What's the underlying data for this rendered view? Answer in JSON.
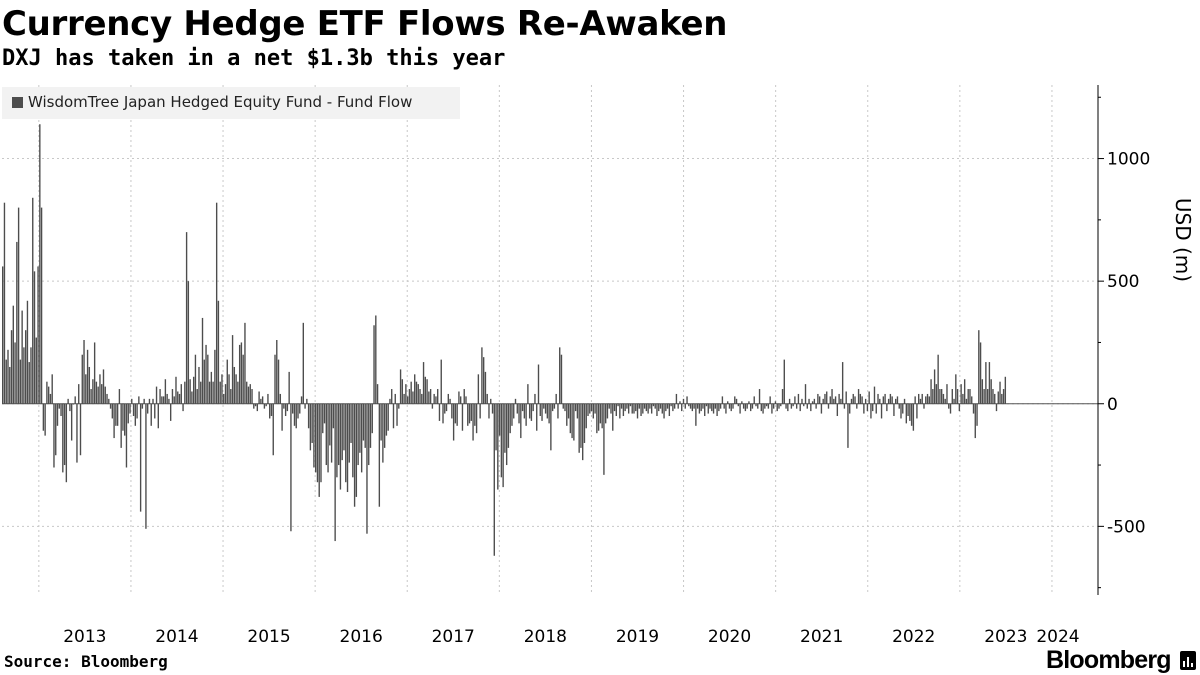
{
  "header": {
    "title": "Currency Hedge ETF Flows Re-Awaken",
    "subtitle": "DXJ has taken in a net $1.3b this year"
  },
  "footer": {
    "source": "Source: Bloomberg",
    "logo_text": "Bloomberg"
  },
  "colors": {
    "bar": "#4d4d4d",
    "grid": "#c8c8c8",
    "axis": "#000000",
    "legend_bg": "#f2f2f2"
  },
  "chart_data": {
    "type": "bar",
    "title": "Currency Hedge ETF Flows Re-Awaken",
    "subtitle": "DXJ has taken in a net $1.3b this year",
    "ylabel": "USD (m)",
    "ylim": [
      -780,
      1300
    ],
    "yticks": [
      1000,
      500,
      0,
      -500
    ],
    "ytick_labels": [
      "1000",
      "500",
      "0",
      "-500"
    ],
    "xlim": [
      2012.6,
      2024.5
    ],
    "xticks": [
      2013,
      2014,
      2015,
      2016,
      2017,
      2018,
      2019,
      2020,
      2021,
      2022,
      2023,
      2024
    ],
    "xtick_labels": [
      "2013",
      "2014",
      "2015",
      "2016",
      "2017",
      "2018",
      "2019",
      "2020",
      "2021",
      "2022",
      "2023",
      "2024"
    ],
    "grid": true,
    "legend_position": "top-left",
    "series": [
      {
        "name": "WisdomTree Japan Hedged Equity Fund - Fund Flow",
        "x_start": 2012.6,
        "x_step_years": 0.0192,
        "values": [
          560,
          820,
          180,
          220,
          150,
          300,
          400,
          250,
          660,
          800,
          180,
          380,
          230,
          300,
          420,
          170,
          230,
          840,
          540,
          270,
          560,
          1140,
          800,
          -110,
          -130,
          90,
          70,
          40,
          120,
          -260,
          -210,
          -90,
          -20,
          -50,
          -280,
          -250,
          -320,
          20,
          -30,
          -150,
          0,
          30,
          -240,
          80,
          -210,
          200,
          260,
          120,
          220,
          150,
          60,
          100,
          250,
          90,
          70,
          120,
          80,
          140,
          70,
          40,
          20,
          -20,
          -60,
          -140,
          -90,
          -90,
          60,
          -180,
          -110,
          -130,
          -260,
          -80,
          -40,
          20,
          -50,
          -90,
          -60,
          30,
          -440,
          -20,
          20,
          -510,
          -40,
          20,
          -90,
          20,
          -60,
          70,
          -100,
          60,
          30,
          30,
          100,
          40,
          20,
          -70,
          60,
          30,
          110,
          50,
          40,
          80,
          -30,
          90,
          700,
          500,
          100,
          50,
          110,
          200,
          60,
          150,
          90,
          350,
          180,
          240,
          200,
          90,
          130,
          90,
          220,
          820,
          420,
          90,
          120,
          40,
          80,
          180,
          120,
          60,
          280,
          150,
          120,
          90,
          240,
          250,
          200,
          330,
          90,
          70,
          80,
          60,
          -20,
          -10,
          -30,
          50,
          20,
          30,
          -20,
          -10,
          40,
          -60,
          -50,
          -210,
          200,
          260,
          180,
          40,
          -110,
          -20,
          -50,
          -30,
          130,
          -520,
          -40,
          -90,
          -100,
          -60,
          -40,
          30,
          330,
          -20,
          20,
          -100,
          -190,
          -160,
          -260,
          -280,
          -320,
          -380,
          -320,
          -120,
          -80,
          -250,
          -280,
          -170,
          -240,
          -100,
          -560,
          -300,
          -250,
          -350,
          -230,
          -190,
          -320,
          -360,
          -240,
          -160,
          -300,
          -420,
          -380,
          -250,
          -200,
          -280,
          -150,
          -180,
          -530,
          -250,
          -180,
          -120,
          320,
          360,
          80,
          -420,
          -150,
          -240,
          -180,
          -130,
          -110,
          20,
          60,
          -100,
          40,
          -90,
          -20,
          140,
          100,
          40,
          80,
          30,
          60,
          90,
          50,
          120,
          90,
          80,
          60,
          40,
          170,
          110,
          100,
          50,
          60,
          -20,
          40,
          30,
          60,
          -70,
          180,
          -80,
          -40,
          -30,
          40,
          20,
          -60,
          -150,
          -80,
          -90,
          50,
          30,
          -110,
          60,
          30,
          -90,
          -80,
          -70,
          -150,
          -90,
          -120,
          120,
          -60,
          230,
          190,
          130,
          40,
          -60,
          20,
          -40,
          -620,
          -190,
          -350,
          -130,
          -300,
          -340,
          -200,
          -250,
          -180,
          -120,
          -90,
          -60,
          20,
          -40,
          -80,
          -140,
          -30,
          -60,
          -90,
          80,
          -60,
          -70,
          -30,
          40,
          -110,
          160,
          -50,
          -70,
          -20,
          -40,
          -60,
          -80,
          -190,
          -30,
          -20,
          40,
          -60,
          230,
          200,
          -20,
          -30,
          -90,
          -60,
          -120,
          -140,
          -150,
          -30,
          -60,
          -200,
          -180,
          -230,
          -160,
          -100,
          -50,
          -40,
          -30,
          -60,
          -40,
          -120,
          -110,
          -80,
          -100,
          -290,
          -80,
          -60,
          -20,
          -40,
          -110,
          -30,
          -50,
          -10,
          -60,
          -20,
          -50,
          -30,
          -20,
          -40,
          -10,
          -40,
          -40,
          -30,
          -60,
          -20,
          -50,
          -40,
          -20,
          -30,
          -40,
          -20,
          -40,
          -10,
          -20,
          -50,
          -30,
          -20,
          -40,
          -60,
          -30,
          -20,
          -50,
          -10,
          -30,
          -20,
          40,
          -20,
          10,
          -30,
          20,
          -20,
          30,
          -10,
          -20,
          -30,
          -20,
          -90,
          -20,
          -40,
          -30,
          -20,
          -50,
          -10,
          -40,
          -20,
          -30,
          -40,
          -20,
          -50,
          -30,
          -20,
          30,
          -20,
          -40,
          10,
          -20,
          -30,
          -20,
          30,
          20,
          -10,
          -40,
          10,
          -20,
          -30,
          -20,
          10,
          -30,
          -20,
          30,
          -10,
          -20,
          60,
          -30,
          -40,
          -20,
          -10,
          -20,
          30,
          -40,
          -20,
          10,
          -30,
          -20,
          -10,
          60,
          180,
          -20,
          -30,
          20,
          -20,
          -10,
          30,
          -20,
          40,
          -30,
          20,
          -10,
          80,
          -20,
          20,
          -30,
          10,
          20,
          -20,
          40,
          30,
          -40,
          20,
          40,
          50,
          -20,
          30,
          60,
          20,
          30,
          -50,
          40,
          20,
          170,
          -20,
          50,
          -180,
          -40,
          20,
          40,
          30,
          -20,
          60,
          40,
          30,
          -40,
          20,
          -30,
          50,
          -60,
          -30,
          70,
          -40,
          40,
          20,
          -60,
          30,
          40,
          -30,
          20,
          40,
          30,
          -50,
          20,
          30,
          -20,
          -60,
          -40,
          20,
          -80,
          -50,
          -70,
          -90,
          -110,
          30,
          -60,
          40,
          20,
          40,
          -20,
          30,
          40,
          30,
          100,
          60,
          140,
          80,
          200,
          60,
          60,
          40,
          20,
          80,
          -20,
          -40,
          60,
          20,
          120,
          60,
          -30,
          80,
          40,
          100,
          20,
          60,
          60,
          30,
          -40,
          -140,
          -90,
          300,
          250,
          100,
          60,
          170,
          60,
          170,
          100,
          60,
          40,
          -30,
          50,
          90,
          40,
          60,
          110
        ]
      }
    ]
  }
}
